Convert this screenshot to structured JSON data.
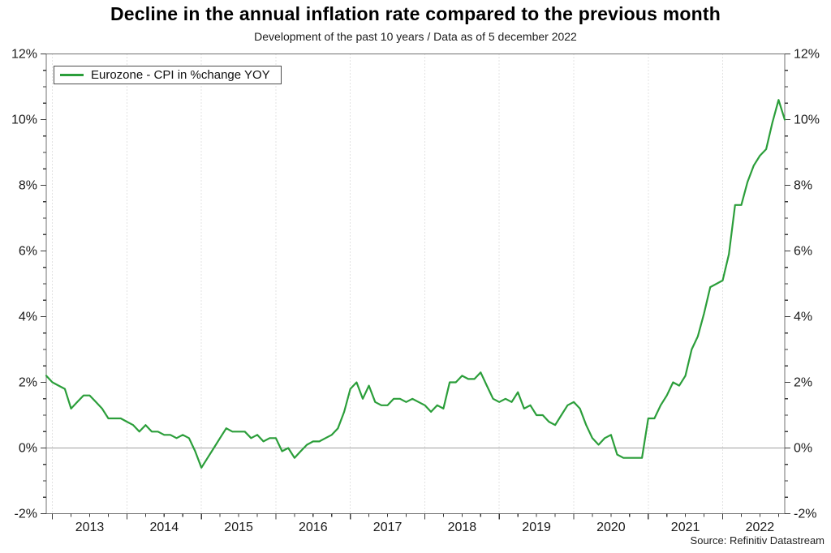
{
  "chart_data": {
    "type": "line",
    "title": "Decline in the annual inflation rate compared to the previous month",
    "subtitle": "Development of the past 10 years / Data as of 5 december 2022",
    "source": "Source: Refinitiv Datastream",
    "legend": {
      "position": "top-left",
      "entries": [
        "Eurozone - CPI in %change YOY"
      ]
    },
    "line_color": "#2b9e3a",
    "grid": "vertical dotted gridline at each January",
    "ylim": [
      -2,
      12
    ],
    "y_unit": "%",
    "y_major_step": 2,
    "y_minor_step": 0.5,
    "y_tick_labels_left": [
      "12%",
      "10%",
      "8%",
      "6%",
      "4%",
      "2%",
      "0%",
      "-2%"
    ],
    "y_tick_labels_right": [
      "12%",
      "10%",
      "8%",
      "6%",
      "4%",
      "2%",
      "0%",
      "-2%"
    ],
    "x_tick_year_labels": [
      "2013",
      "2014",
      "2015",
      "2016",
      "2017",
      "2018",
      "2019",
      "2020",
      "2021",
      "2022"
    ],
    "x_minor_ticks": "quarterly",
    "series": [
      {
        "name": "Eurozone - CPI in %change YOY",
        "frequency": "monthly",
        "start": "2012-12",
        "end": "2022-11",
        "values": [
          2.2,
          2.0,
          1.9,
          1.8,
          1.2,
          1.4,
          1.6,
          1.6,
          1.4,
          1.2,
          0.9,
          0.9,
          0.9,
          0.8,
          0.7,
          0.5,
          0.7,
          0.5,
          0.5,
          0.4,
          0.4,
          0.3,
          0.4,
          0.3,
          -0.1,
          -0.6,
          -0.3,
          0.0,
          0.3,
          0.6,
          0.5,
          0.5,
          0.5,
          0.3,
          0.4,
          0.2,
          0.3,
          0.3,
          -0.1,
          0.0,
          -0.3,
          -0.1,
          0.1,
          0.2,
          0.2,
          0.3,
          0.4,
          0.6,
          1.1,
          1.8,
          2.0,
          1.5,
          1.9,
          1.4,
          1.3,
          1.3,
          1.5,
          1.5,
          1.4,
          1.5,
          1.4,
          1.3,
          1.1,
          1.3,
          1.2,
          2.0,
          2.0,
          2.2,
          2.1,
          2.1,
          2.3,
          1.9,
          1.5,
          1.4,
          1.5,
          1.4,
          1.7,
          1.2,
          1.3,
          1.0,
          1.0,
          0.8,
          0.7,
          1.0,
          1.3,
          1.4,
          1.2,
          0.7,
          0.3,
          0.1,
          0.3,
          0.4,
          -0.2,
          -0.3,
          -0.3,
          -0.3,
          -0.3,
          0.9,
          0.9,
          1.3,
          1.6,
          2.0,
          1.9,
          2.2,
          3.0,
          3.4,
          4.1,
          4.9,
          5.0,
          5.1,
          5.9,
          7.4,
          7.4,
          8.1,
          8.6,
          8.9,
          9.1,
          9.9,
          10.6,
          10.0
        ]
      }
    ]
  }
}
